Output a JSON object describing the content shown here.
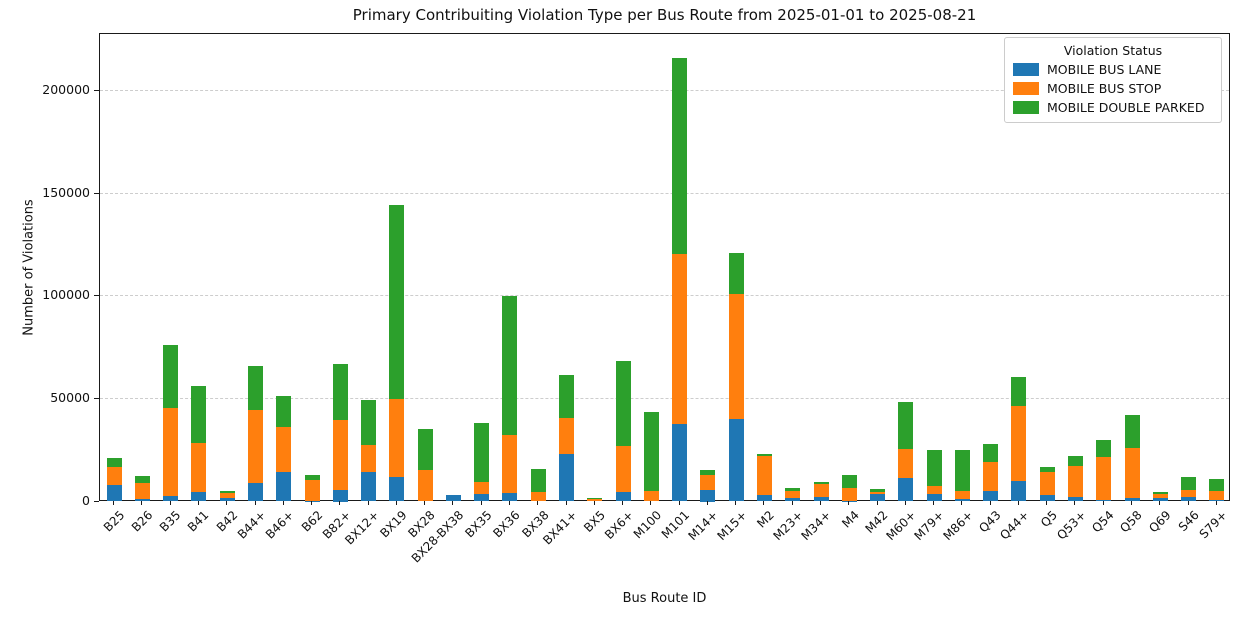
{
  "title": "Primary Contribuiting Violation Type per Bus Route from 2025-01-01 to 2025-08-21",
  "chart_data": {
    "type": "bar",
    "stacked": true,
    "title": "Primary Contribuiting Violation Type per Bus Route from 2025-01-01 to 2025-08-21",
    "xlabel": "Bus Route ID",
    "ylabel": "Number of Violations",
    "ylim": [
      0,
      228000
    ],
    "yticks": [
      0,
      50000,
      100000,
      150000,
      200000
    ],
    "grid": "horizontal-dashed",
    "legend": {
      "title": "Violation Status",
      "position": "upper-right"
    },
    "categories": [
      "B25",
      "B26",
      "B35",
      "B41",
      "B42",
      "B44+",
      "B46+",
      "B62",
      "B82+",
      "BX12+",
      "BX19",
      "BX28",
      "BX28-BX38",
      "BX35",
      "BX36",
      "BX38",
      "BX41+",
      "BX5",
      "BX6+",
      "M100",
      "M101",
      "M14+",
      "M15+",
      "M2",
      "M23+",
      "M34+",
      "M4",
      "M42",
      "M60+",
      "M79+",
      "M86+",
      "Q43",
      "Q44+",
      "Q5",
      "Q53+",
      "Q54",
      "Q58",
      "Q69",
      "S46",
      "S79+"
    ],
    "series": [
      {
        "name": "MOBILE BUS LANE",
        "color": "#1f77b4",
        "values": [
          8000,
          1200,
          2500,
          4500,
          1500,
          9200,
          14500,
          400,
          5700,
          14500,
          12000,
          0,
          3100,
          3600,
          4000,
          0,
          23000,
          0,
          4500,
          0,
          38000,
          5700,
          40000,
          3000,
          1900,
          2400,
          400,
          3500,
          11300,
          3700,
          1300,
          5000,
          10000,
          3100,
          2400,
          700,
          1600,
          1600,
          2200,
          700
        ]
      },
      {
        "name": "MOBILE BUS STOP",
        "color": "#ff7f0e",
        "values": [
          9000,
          8000,
          43000,
          24000,
          2600,
          35500,
          22000,
          9900,
          34200,
          13200,
          37800,
          15200,
          0,
          6100,
          28300,
          4400,
          17700,
          1300,
          22800,
          4900,
          82900,
          7000,
          61000,
          19000,
          3400,
          6000,
          6000,
          1300,
          14200,
          3900,
          4000,
          14400,
          36500,
          11300,
          15100,
          21100,
          24600,
          2000,
          3400,
          4400
        ]
      },
      {
        "name": "MOBILE DOUBLE PARKED",
        "color": "#2ca02c",
        "values": [
          4000,
          3000,
          31000,
          28000,
          1100,
          21500,
          15000,
          2500,
          27400,
          21800,
          95000,
          20300,
          0,
          28800,
          68000,
          11300,
          21200,
          400,
          41000,
          38600,
          95500,
          2700,
          20000,
          1300,
          1100,
          1300,
          6300,
          1200,
          23200,
          17400,
          19700,
          8600,
          14200,
          2400,
          4800,
          8100,
          15800,
          1200,
          6400,
          5700
        ]
      }
    ]
  }
}
